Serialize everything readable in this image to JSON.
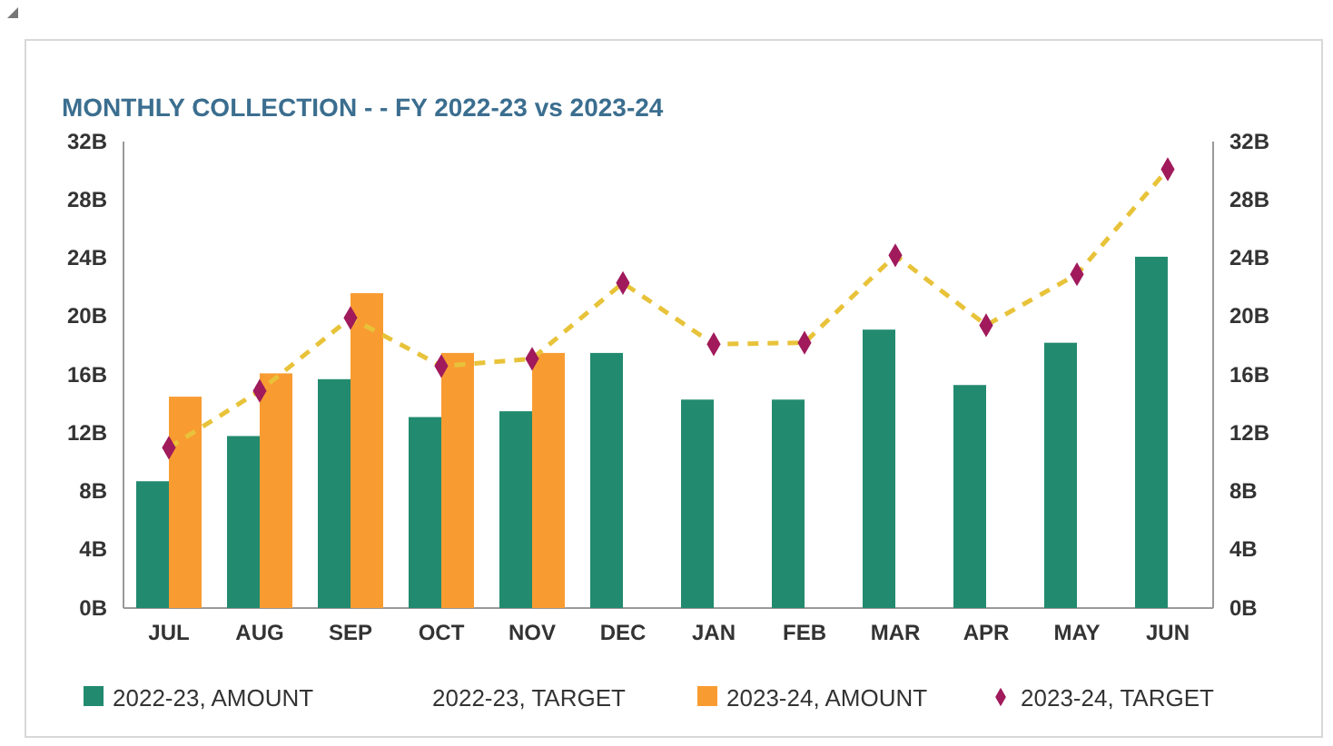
{
  "chart_data": {
    "type": "bar",
    "title": "MONTHLY COLLECTION - - FY 2022-23 vs 2023-24",
    "categories": [
      "JUL",
      "AUG",
      "SEP",
      "OCT",
      "NOV",
      "DEC",
      "JAN",
      "FEB",
      "MAR",
      "APR",
      "MAY",
      "JUN"
    ],
    "series": [
      {
        "name": "2022-23, AMOUNT",
        "color": "#228a6f",
        "values": [
          8.7,
          11.8,
          15.7,
          13.1,
          13.5,
          17.5,
          14.3,
          14.3,
          19.1,
          15.3,
          18.2,
          24.1
        ]
      },
      {
        "name": "2022-23, TARGET",
        "type": "line",
        "values": [
          null,
          null,
          null,
          null,
          null,
          null,
          null,
          null,
          null,
          null,
          null,
          null
        ]
      },
      {
        "name": "2023-24, AMOUNT",
        "color": "#f89c32",
        "values": [
          14.5,
          16.1,
          21.6,
          17.5,
          17.5,
          null,
          null,
          null,
          null,
          null,
          null,
          null
        ]
      },
      {
        "name": "2023-24, TARGET",
        "type": "line",
        "color": "#a01a5c",
        "marker": "diamond",
        "line_style": "dashed",
        "values": [
          11.0,
          14.9,
          19.9,
          16.6,
          17.1,
          22.3,
          18.1,
          18.2,
          24.2,
          19.4,
          22.9,
          30.1
        ]
      }
    ],
    "ylim": [
      0,
      32
    ],
    "yticks": [
      {
        "value": 0,
        "label": "0B"
      },
      {
        "value": 4,
        "label": "4B"
      },
      {
        "value": 8,
        "label": "8B"
      },
      {
        "value": 12,
        "label": "12B"
      },
      {
        "value": 16,
        "label": "16B"
      },
      {
        "value": 20,
        "label": "20B"
      },
      {
        "value": 24,
        "label": "24B"
      },
      {
        "value": 28,
        "label": "28B"
      },
      {
        "value": 32,
        "label": "32B"
      }
    ],
    "y2lim": [
      0,
      32
    ],
    "y2ticks": [
      {
        "value": 0,
        "label": "0B"
      },
      {
        "value": 4,
        "label": "4B"
      },
      {
        "value": 8,
        "label": "8B"
      },
      {
        "value": 12,
        "label": "12B"
      },
      {
        "value": 16,
        "label": "16B"
      },
      {
        "value": 20,
        "label": "20B"
      },
      {
        "value": 24,
        "label": "24B"
      },
      {
        "value": 28,
        "label": "28B"
      },
      {
        "value": 32,
        "label": "32B"
      }
    ],
    "grid": false,
    "legend": "bottom"
  }
}
